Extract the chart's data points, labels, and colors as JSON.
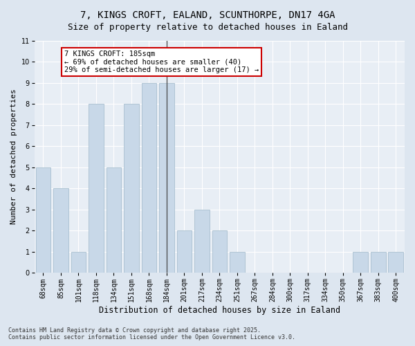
{
  "title1": "7, KINGS CROFT, EALAND, SCUNTHORPE, DN17 4GA",
  "title2": "Size of property relative to detached houses in Ealand",
  "xlabel": "Distribution of detached houses by size in Ealand",
  "ylabel": "Number of detached properties",
  "footnote1": "Contains HM Land Registry data © Crown copyright and database right 2025.",
  "footnote2": "Contains public sector information licensed under the Open Government Licence v3.0.",
  "categories": [
    "68sqm",
    "85sqm",
    "101sqm",
    "118sqm",
    "134sqm",
    "151sqm",
    "168sqm",
    "184sqm",
    "201sqm",
    "217sqm",
    "234sqm",
    "251sqm",
    "267sqm",
    "284sqm",
    "300sqm",
    "317sqm",
    "334sqm",
    "350sqm",
    "367sqm",
    "383sqm",
    "400sqm"
  ],
  "values": [
    5,
    4,
    1,
    8,
    5,
    8,
    9,
    9,
    2,
    3,
    2,
    1,
    0,
    0,
    0,
    0,
    0,
    0,
    1,
    1,
    1
  ],
  "bar_color": "#c8d8e8",
  "bar_edge_color": "#a8bfcf",
  "highlight_bar_index": 7,
  "highlight_line_color": "#444444",
  "annotation_text": "7 KINGS CROFT: 185sqm\n← 69% of detached houses are smaller (40)\n29% of semi-detached houses are larger (17) →",
  "annotation_box_facecolor": "#ffffff",
  "annotation_box_edgecolor": "#cc0000",
  "annotation_fontsize": 7.5,
  "ylim": [
    0,
    11
  ],
  "yticks": [
    0,
    1,
    2,
    3,
    4,
    5,
    6,
    7,
    8,
    9,
    10,
    11
  ],
  "bg_color": "#dde6f0",
  "plot_bg_color": "#e8eef5",
  "title_fontsize": 10,
  "subtitle_fontsize": 9,
  "axis_label_fontsize": 8.5,
  "tick_fontsize": 7,
  "ylabel_fontsize": 8
}
